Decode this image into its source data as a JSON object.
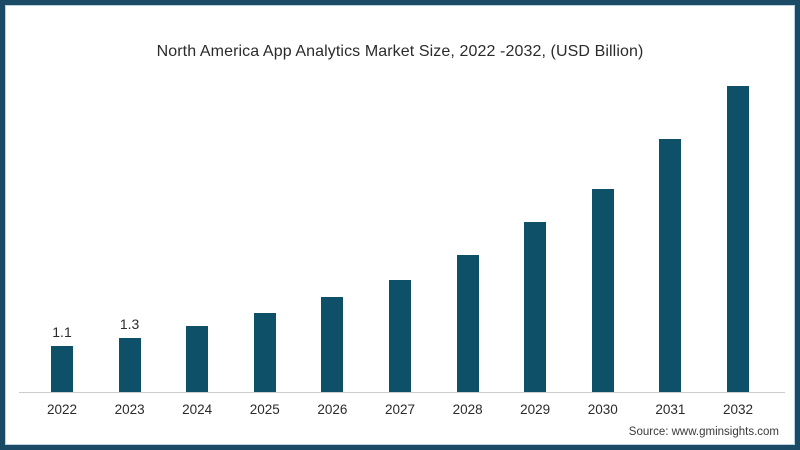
{
  "title": "North America App Analytics Market Size, 2022 -2032, (USD Billion)",
  "source": "Source: www.gminsights.com",
  "colors": {
    "bar": "#0e5068",
    "frame_border": "#1a4a66",
    "frame_inner_line": "#b9d2e0",
    "axis_line": "#cccccc",
    "text": "#2b2b2b"
  },
  "chart_data": {
    "type": "bar",
    "title": "North America App Analytics Market Size, 2022 -2032, (USD Billion)",
    "categories": [
      "2022",
      "2023",
      "2024",
      "2025",
      "2026",
      "2027",
      "2028",
      "2029",
      "2030",
      "2031",
      "2032"
    ],
    "values": [
      1.1,
      1.3,
      1.6,
      1.9,
      2.3,
      2.7,
      3.3,
      4.1,
      4.9,
      6.1,
      7.4
    ],
    "data_labels": [
      "1.1",
      "1.3",
      "",
      "",
      "",
      "",
      "",
      "",
      "",
      "",
      ""
    ],
    "xlabel": "",
    "ylabel": "",
    "ylim": [
      0,
      8
    ],
    "grid": false,
    "legend": false,
    "bar_color": "#0e5068"
  }
}
